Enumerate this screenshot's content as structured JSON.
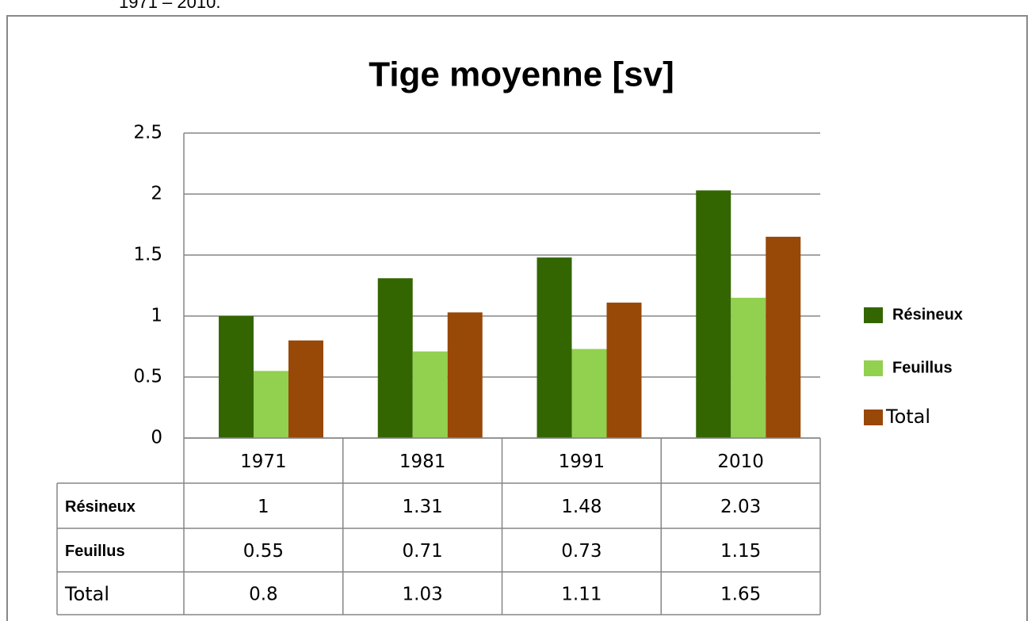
{
  "caption": "1971 – 2010.",
  "chart_data": {
    "type": "bar",
    "title": "Tige moyenne [sv]",
    "categories": [
      "1971",
      "1981",
      "1991",
      "2010"
    ],
    "series": [
      {
        "name": "Résineux",
        "color": "#336600",
        "label_bold": true,
        "values": [
          1,
          1.31,
          1.48,
          2.03
        ]
      },
      {
        "name": "Feuillus",
        "color": "#92d050",
        "label_bold": true,
        "values": [
          0.55,
          0.71,
          0.73,
          1.15
        ]
      },
      {
        "name": "Total",
        "color": "#984807",
        "label_bold": false,
        "values": [
          0.8,
          1.03,
          1.11,
          1.65
        ]
      }
    ],
    "ylim": [
      0,
      2.5
    ],
    "yticks": [
      0,
      0.5,
      1,
      1.5,
      2,
      2.5
    ],
    "grid": true,
    "legend": "right",
    "data_table": true
  }
}
